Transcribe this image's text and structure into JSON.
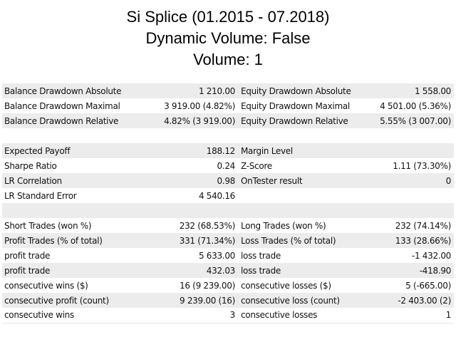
{
  "title": {
    "line1": "Si Splice (01.2015 - 07.2018)",
    "line2": "Dynamic Volume: False",
    "line3": "Volume: 1"
  },
  "rows": [
    {
      "l1": "Balance Drawdown Absolute",
      "v1": "1 210.00",
      "l2": "Equity Drawdown Absolute",
      "v2": "1 558.00"
    },
    {
      "l1": "Balance Drawdown Maximal",
      "v1": "3 919.00 (4.82%)",
      "l2": "Equity Drawdown Maximal",
      "v2": "4 501.00 (5.36%)"
    },
    {
      "l1": "Balance Drawdown Relative",
      "v1": "4.82% (3 919.00)",
      "l2": "Equity Drawdown Relative",
      "v2": "5.55% (3 007.00)"
    },
    {
      "l1": "",
      "v1": "",
      "l2": "",
      "v2": ""
    },
    {
      "l1": "Expected Payoff",
      "v1": "188.12",
      "l2": "Margin Level",
      "v2": ""
    },
    {
      "l1": "Sharpe Ratio",
      "v1": "0.24",
      "l2": "Z-Score",
      "v2": "1.11 (73.30%)"
    },
    {
      "l1": "LR Correlation",
      "v1": "0.98",
      "l2": "OnTester result",
      "v2": "0"
    },
    {
      "l1": "LR Standard Error",
      "v1": "4 540.16",
      "l2": "",
      "v2": ""
    },
    {
      "l1": "",
      "v1": "",
      "l2": "",
      "v2": ""
    },
    {
      "l1": "Short Trades (won %)",
      "v1": "232 (68.53%)",
      "l2": "Long Trades (won %)",
      "v2": "232 (74.14%)"
    },
    {
      "l1": "Profit Trades (% of total)",
      "v1": "331 (71.34%)",
      "l2": "Loss Trades (% of total)",
      "v2": "133 (28.66%)"
    },
    {
      "l1": "profit trade",
      "v1": "5 633.00",
      "l2": "loss trade",
      "v2": "-1 432.00"
    },
    {
      "l1": "profit trade",
      "v1": "432.03",
      "l2": "loss trade",
      "v2": "-418.90"
    },
    {
      "l1": "consecutive wins ($)",
      "v1": "16 (9 239.00)",
      "l2": "consecutive losses ($)",
      "v2": "5 (-665.00)"
    },
    {
      "l1": "consecutive profit (count)",
      "v1": "9 239.00 (16)",
      "l2": "consecutive loss (count)",
      "v2": "-2 403.00 (2)"
    },
    {
      "l1": "consecutive wins",
      "v1": "3",
      "l2": "consecutive losses",
      "v2": "1"
    }
  ]
}
